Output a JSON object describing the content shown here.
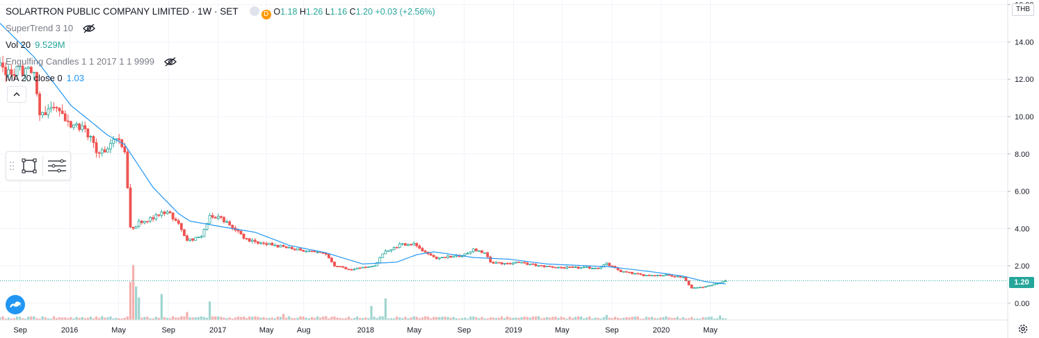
{
  "header": {
    "symbol": "SOLARTRON PUBLIC COMPANY LIMITED · 1W · SET",
    "badge_d": "D",
    "ohlc": {
      "o_label": "O",
      "o_value": "1.18",
      "h_label": "H",
      "h_value": "1.26",
      "l_label": "L",
      "l_value": "1.16",
      "c_label": "C",
      "c_value": "1.20",
      "change": "+0.03 (+2.56%)"
    }
  },
  "indicators": [
    {
      "label": "SuperTrend 3 10",
      "value": "",
      "hidden_icon": "eye-off-icon"
    },
    {
      "label": "Vol 20",
      "value": "9.529M"
    },
    {
      "label": "Engulfing Candles 1 1 2017 1 1 9999",
      "value": "",
      "hidden_icon": "eye-off-icon"
    },
    {
      "label": "MA 20 close 0",
      "value": "1.03"
    }
  ],
  "currency_label": "THB",
  "last_price_label": "1.20",
  "colors": {
    "up": "#26a69a",
    "down": "#ef5350",
    "ma": "#2196f3",
    "vol_up": "#9fd5cf",
    "vol_down": "#f5b0ae",
    "axis_text": "#131722",
    "grid": "#f0f3fa"
  },
  "icons": {
    "collapse": "chevron-up-icon",
    "drawing_tools": [
      "drag-handle-icon",
      "rectangle-select-icon",
      "object-tree-icon"
    ],
    "logo": "tradingview-logo-icon",
    "settings": "gear-icon"
  },
  "chart_data": {
    "type": "candlestick",
    "title": "",
    "y_axis": {
      "position": "right",
      "range": [
        -0.9,
        16.25
      ],
      "ticks": [
        "16.00",
        "14.00",
        "12.00",
        "10.00",
        "8.00",
        "6.00",
        "4.00",
        "2.00",
        "0.00"
      ]
    },
    "x_axis": {
      "ticks": [
        {
          "label": "Sep",
          "date": "2015-09-01"
        },
        {
          "label": "2016",
          "date": "2016-01-01"
        },
        {
          "label": "May",
          "date": "2016-05-01"
        },
        {
          "label": "Sep",
          "date": "2016-09-01"
        },
        {
          "label": "2017",
          "date": "2017-01-01"
        },
        {
          "label": "May",
          "date": "2017-05-01"
        },
        {
          "label": "Aug",
          "date": "2017-08-01"
        },
        {
          "label": "2018",
          "date": "2018-01-01"
        },
        {
          "label": "May",
          "date": "2018-05-01"
        },
        {
          "label": "Sep",
          "date": "2018-09-01"
        },
        {
          "label": "2019",
          "date": "2019-01-01"
        },
        {
          "label": "May",
          "date": "2019-05-01"
        },
        {
          "label": "Sep",
          "date": "2019-09-01"
        },
        {
          "label": "2020",
          "date": "2020-01-01"
        },
        {
          "label": "May",
          "date": "2020-05-01"
        }
      ]
    },
    "close_anchors": [
      [
        "2015-07-20",
        12.6
      ],
      [
        "2015-08-10",
        12.3
      ],
      [
        "2015-09-07",
        12.5
      ],
      [
        "2015-10-05",
        12.3
      ],
      [
        "2015-10-19",
        10.0
      ],
      [
        "2015-11-02",
        10.2
      ],
      [
        "2015-12-07",
        10.4
      ],
      [
        "2016-01-04",
        9.5
      ],
      [
        "2016-02-08",
        9.4
      ],
      [
        "2016-03-07",
        8.1
      ],
      [
        "2016-04-04",
        8.3
      ],
      [
        "2016-04-25",
        8.8
      ],
      [
        "2016-05-16",
        8.3
      ],
      [
        "2016-05-30",
        4.0
      ],
      [
        "2016-06-20",
        4.3
      ],
      [
        "2016-07-25",
        4.6
      ],
      [
        "2016-08-29",
        4.9
      ],
      [
        "2016-09-26",
        4.2
      ],
      [
        "2016-10-17",
        3.4
      ],
      [
        "2016-11-21",
        3.5
      ],
      [
        "2016-12-12",
        4.7
      ],
      [
        "2017-01-09",
        4.6
      ],
      [
        "2017-02-13",
        3.9
      ],
      [
        "2017-03-13",
        3.4
      ],
      [
        "2017-05-01",
        3.2
      ],
      [
        "2017-06-12",
        3.0
      ],
      [
        "2017-08-07",
        2.8
      ],
      [
        "2017-09-25",
        2.6
      ],
      [
        "2017-10-16",
        2.0
      ],
      [
        "2017-11-27",
        1.8
      ],
      [
        "2017-12-25",
        1.9
      ],
      [
        "2018-01-22",
        2.0
      ],
      [
        "2018-02-19",
        2.8
      ],
      [
        "2018-03-26",
        3.1
      ],
      [
        "2018-04-30",
        3.2
      ],
      [
        "2018-05-28",
        2.7
      ],
      [
        "2018-06-25",
        2.4
      ],
      [
        "2018-07-30",
        2.5
      ],
      [
        "2018-08-27",
        2.5
      ],
      [
        "2018-09-24",
        2.9
      ],
      [
        "2018-10-22",
        2.7
      ],
      [
        "2018-11-05",
        2.2
      ],
      [
        "2018-12-10",
        2.1
      ],
      [
        "2019-01-07",
        2.2
      ],
      [
        "2019-03-04",
        2.0
      ],
      [
        "2019-05-06",
        1.9
      ],
      [
        "2019-07-29",
        1.9
      ],
      [
        "2019-08-19",
        2.1
      ],
      [
        "2019-09-23",
        1.7
      ],
      [
        "2019-11-18",
        1.5
      ],
      [
        "2020-01-13",
        1.5
      ],
      [
        "2020-02-24",
        1.4
      ],
      [
        "2020-03-16",
        0.8
      ],
      [
        "2020-04-20",
        0.9
      ],
      [
        "2020-05-25",
        1.1
      ],
      [
        "2020-06-08",
        1.2
      ]
    ],
    "ma_anchors": [
      [
        "2015-07-13",
        15.0
      ],
      [
        "2015-10-05",
        13.2
      ],
      [
        "2016-01-04",
        10.6
      ],
      [
        "2016-04-04",
        9.0
      ],
      [
        "2016-05-16",
        8.5
      ],
      [
        "2016-07-25",
        6.2
      ],
      [
        "2016-09-26",
        4.8
      ],
      [
        "2016-10-24",
        4.4
      ],
      [
        "2017-01-09",
        4.1
      ],
      [
        "2017-04-03",
        3.8
      ],
      [
        "2017-06-26",
        3.1
      ],
      [
        "2017-09-25",
        2.7
      ],
      [
        "2017-12-25",
        2.1
      ],
      [
        "2018-03-19",
        2.2
      ],
      [
        "2018-05-07",
        2.6
      ],
      [
        "2018-06-18",
        2.75
      ],
      [
        "2018-09-24",
        2.45
      ],
      [
        "2018-12-24",
        2.35
      ],
      [
        "2019-03-25",
        2.1
      ],
      [
        "2019-08-26",
        1.95
      ],
      [
        "2019-12-02",
        1.7
      ],
      [
        "2020-02-24",
        1.45
      ],
      [
        "2020-04-20",
        1.15
      ],
      [
        "2020-06-08",
        1.03
      ]
    ],
    "volume_spikes": [
      [
        "2016-05-30",
        7.6
      ],
      [
        "2016-06-06",
        11.0
      ],
      [
        "2016-06-13",
        6.7
      ],
      [
        "2016-06-20",
        4.5
      ],
      [
        "2016-08-15",
        5.2
      ],
      [
        "2016-10-17",
        1.6
      ],
      [
        "2016-12-12",
        3.7
      ],
      [
        "2017-06-12",
        1.2
      ],
      [
        "2018-01-15",
        2.8
      ],
      [
        "2018-02-19",
        4.3
      ],
      [
        "2019-08-19",
        1.0
      ],
      [
        "2020-05-25",
        0.9
      ]
    ],
    "last_price": 1.2,
    "last_ohlc": {
      "open": 1.18,
      "high": 1.26,
      "low": 1.16,
      "close": 1.2
    }
  }
}
